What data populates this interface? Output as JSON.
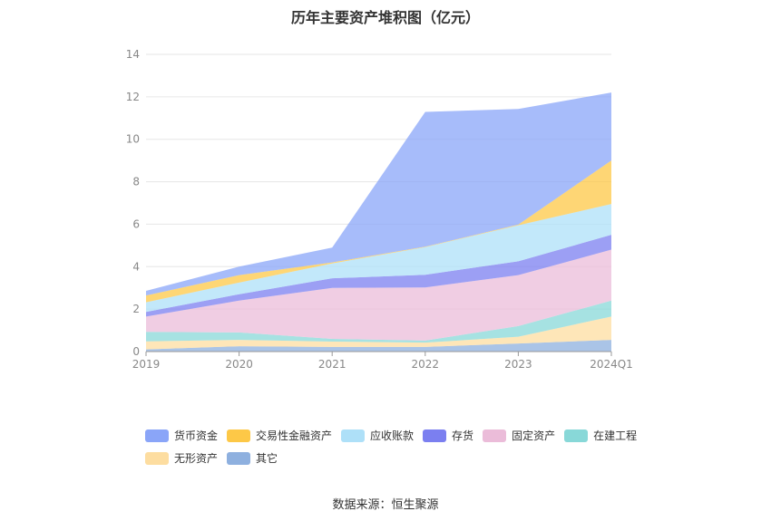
{
  "title": "历年主要资产堆积图（亿元）",
  "source": "数据来源：恒生聚源",
  "chart_data": {
    "type": "area",
    "stacked": true,
    "title": "历年主要资产堆积图（亿元）",
    "x": [
      "2019",
      "2020",
      "2021",
      "2022",
      "2023",
      "2024Q1"
    ],
    "ylim": [
      0,
      14
    ],
    "yticks": [
      0,
      2,
      4,
      6,
      8,
      10,
      12,
      14
    ],
    "grid": true,
    "legend_position": "bottom",
    "series": [
      {
        "name": "其它",
        "color": "#8eb0df",
        "values": [
          0.1,
          0.25,
          0.22,
          0.22,
          0.38,
          0.55
        ]
      },
      {
        "name": "无形资产",
        "color": "#fddda0",
        "values": [
          0.38,
          0.3,
          0.25,
          0.2,
          0.32,
          1.1
        ]
      },
      {
        "name": "在建工程",
        "color": "#88d8d8",
        "values": [
          0.45,
          0.35,
          0.13,
          0.1,
          0.5,
          0.75
        ]
      },
      {
        "name": "固定资产",
        "color": "#ebbcd9",
        "values": [
          0.72,
          1.5,
          2.4,
          2.5,
          2.4,
          2.4
        ]
      },
      {
        "name": "存货",
        "color": "#7b7ff0",
        "values": [
          0.22,
          0.3,
          0.45,
          0.6,
          0.65,
          0.7
        ]
      },
      {
        "name": "应收账款",
        "color": "#aee0f8",
        "values": [
          0.45,
          0.55,
          0.7,
          1.3,
          1.7,
          1.45
        ]
      },
      {
        "name": "交易性金融资产",
        "color": "#fdc847",
        "values": [
          0.32,
          0.35,
          0.05,
          0.02,
          0.03,
          2.05
        ]
      },
      {
        "name": "货币资金",
        "color": "#8aa5f8",
        "values": [
          0.22,
          0.4,
          0.7,
          6.35,
          5.45,
          3.2
        ]
      }
    ]
  },
  "legend": {
    "row1": [
      {
        "label": "货币资金",
        "color": "#8aa5f8"
      },
      {
        "label": "交易性金融资产",
        "color": "#fdc847"
      },
      {
        "label": "应收账款",
        "color": "#aee0f8"
      },
      {
        "label": "存货",
        "color": "#7b7ff0"
      },
      {
        "label": "固定资产",
        "color": "#ebbcd9"
      },
      {
        "label": "在建工程",
        "color": "#88d8d8"
      }
    ],
    "row2": [
      {
        "label": "无形资产",
        "color": "#fddda0"
      },
      {
        "label": "其它",
        "color": "#8eb0df"
      }
    ]
  }
}
